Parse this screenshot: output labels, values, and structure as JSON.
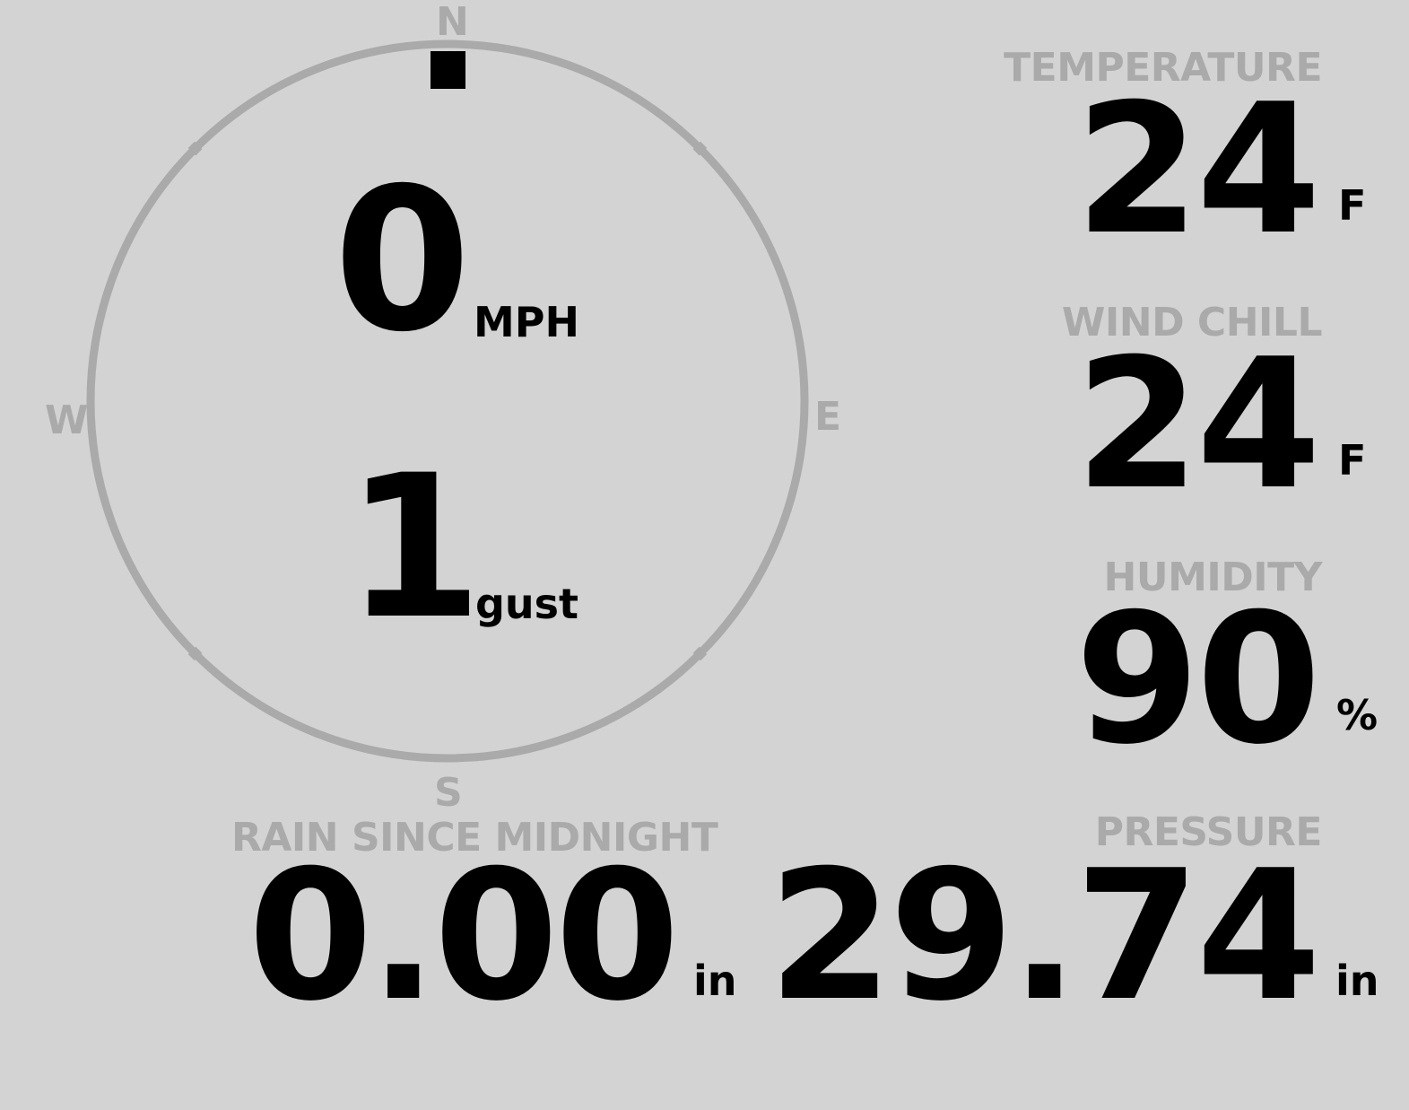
{
  "compass": {
    "north": "N",
    "south": "S",
    "east": "E",
    "west": "W",
    "wind_direction_deg": 0,
    "ring_color": "#aaaaaa",
    "indicator_color": "#000000"
  },
  "wind": {
    "speed": "0",
    "speed_unit": "MPH",
    "gust": "1",
    "gust_unit": "gust"
  },
  "temperature": {
    "label": "TEMPERATURE",
    "value": "24",
    "unit": "F"
  },
  "wind_chill": {
    "label": "WIND CHILL",
    "value": "24",
    "unit": "F"
  },
  "humidity": {
    "label": "HUMIDITY",
    "value": "90",
    "unit": "%"
  },
  "rain": {
    "label": "RAIN SINCE MIDNIGHT",
    "value": "0.00",
    "unit": "in"
  },
  "pressure": {
    "label": "PRESSURE",
    "value": "29.74",
    "unit": "in"
  },
  "colors": {
    "background": "#d3d3d3",
    "label": "#aaaaaa",
    "value": "#000000"
  }
}
